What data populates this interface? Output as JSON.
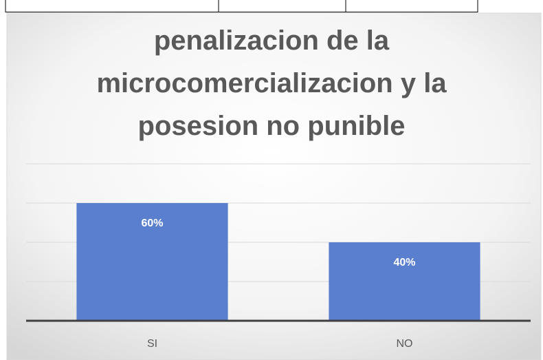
{
  "chart_data": {
    "type": "bar",
    "title": "penalizacion de la microcomercializacion y la posesion no punible",
    "categories": [
      "SI",
      "NO"
    ],
    "values": [
      60,
      40
    ],
    "value_labels": [
      "60%",
      "40%"
    ],
    "color": "#5b7fcf",
    "ylim": [
      0,
      80
    ],
    "yticks": [
      0,
      20,
      40,
      60,
      80
    ],
    "grid": true
  }
}
